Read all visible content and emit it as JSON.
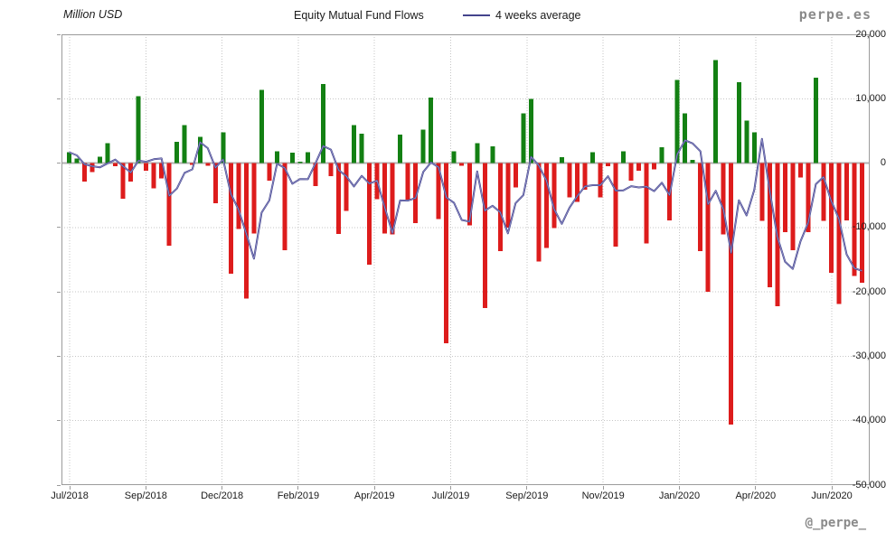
{
  "header": {
    "y_axis_unit": "Million USD",
    "title": "Equity Mutual Fund Flows",
    "legend_label": "4 weeks average",
    "brand": "perpe.es"
  },
  "footer": {
    "handle": "@_perpe_"
  },
  "chart_data": {
    "type": "bar",
    "title": "Equity Mutual Fund Flows",
    "ylabel": "Million USD",
    "ylim": [
      -50000,
      20000
    ],
    "y_ticks": [
      20000,
      10000,
      0,
      -10000,
      -20000,
      -30000,
      -40000,
      -50000
    ],
    "y_tick_labels": [
      "20,000",
      "10,000",
      "0",
      "-10,000",
      "-20,000",
      "-30,000",
      "-40,000",
      "-50,000"
    ],
    "x_tick_labels": [
      "Jul/2018",
      "Sep/2018",
      "Dec/2018",
      "Feb/2019",
      "Apr/2019",
      "Jul/2019",
      "Sep/2019",
      "Nov/2019",
      "Jan/2020",
      "Apr/2020",
      "Jun/2020"
    ],
    "x_tick_positions_pct": [
      1.01,
      10.44,
      19.87,
      29.3,
      38.73,
      48.16,
      57.59,
      67.02,
      76.45,
      85.88,
      95.31
    ],
    "grid": true,
    "legend_position": "top",
    "series": [
      {
        "name": "Weekly equity mutual fund flows (Million USD)",
        "type": "bar",
        "values": [
          1700,
          700,
          -2900,
          -1400,
          1000,
          3100,
          -500,
          -5500,
          -2900,
          10400,
          -1200,
          -3900,
          -2400,
          -12800,
          3300,
          5900,
          -300,
          4100,
          -400,
          -6200,
          4800,
          -17200,
          -10200,
          -21000,
          -10900,
          11400,
          -2700,
          1800,
          -13500,
          1600,
          200,
          1700,
          -3600,
          12300,
          -2000,
          -11000,
          -7400,
          5900,
          4600,
          -15800,
          -5600,
          -10900,
          -11100,
          4400,
          -5700,
          -9300,
          5200,
          10200,
          -8700,
          -28000,
          1800,
          -400,
          -9700,
          3100,
          -22500,
          2600,
          -13700,
          -10000,
          -3800,
          7700,
          10000,
          -15300,
          -13200,
          -10100,
          900,
          -5300,
          -6000,
          -4100,
          1700,
          -5300,
          -450,
          -13000,
          1800,
          -2700,
          -1200,
          -12500,
          -1000,
          2500,
          -8900,
          12900,
          7700,
          500,
          -13700,
          -20000,
          16000,
          -11100,
          -40600,
          12600,
          6600,
          4800,
          -9000,
          -19300,
          -22200,
          -10700,
          -13500,
          -2200,
          -10700,
          13300,
          -9000,
          -17000,
          -21900,
          -8900,
          -17500,
          -18600
        ]
      },
      {
        "name": "4 weeks average",
        "type": "line",
        "derived_from": "trailing 4-week mean of weekly values",
        "window": 4
      }
    ],
    "colors": {
      "positive_bar": "#138013",
      "negative_bar": "#dd1c1c",
      "average_line": "#44448c",
      "average_line_highlight": "#9a9ad0",
      "gridline": "#c6c6c6",
      "zero_line": "#b0b0b0",
      "plot_border": "#9b9b9b",
      "text": "#1a1a1a",
      "brand_text": "#8a8a8a"
    }
  }
}
